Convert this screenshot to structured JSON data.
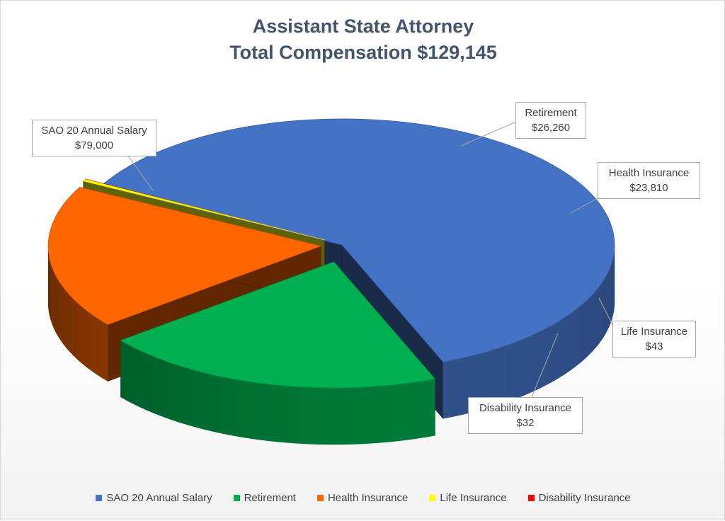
{
  "chart_data": {
    "type": "pie",
    "title_lines": [
      "Assistant State Attorney",
      "Total Compensation $129,145"
    ],
    "slices": [
      {
        "name": "SAO 20 Annual Salary",
        "value": 79000,
        "label": "$79,000",
        "color": "#4472c4"
      },
      {
        "name": "Retirement",
        "value": 26260,
        "label": "$26,260",
        "color": "#00b050"
      },
      {
        "name": "Health Insurance",
        "value": 23810,
        "label": "$23,810",
        "color": "#ff6600"
      },
      {
        "name": "Life Insurance",
        "value": 43,
        "label": "$43",
        "color": "#ffff00"
      },
      {
        "name": "Disability Insurance",
        "value": 32,
        "label": "$32",
        "color": "#ff0000"
      }
    ],
    "legend_position": "bottom",
    "style": "3d-exploded"
  }
}
